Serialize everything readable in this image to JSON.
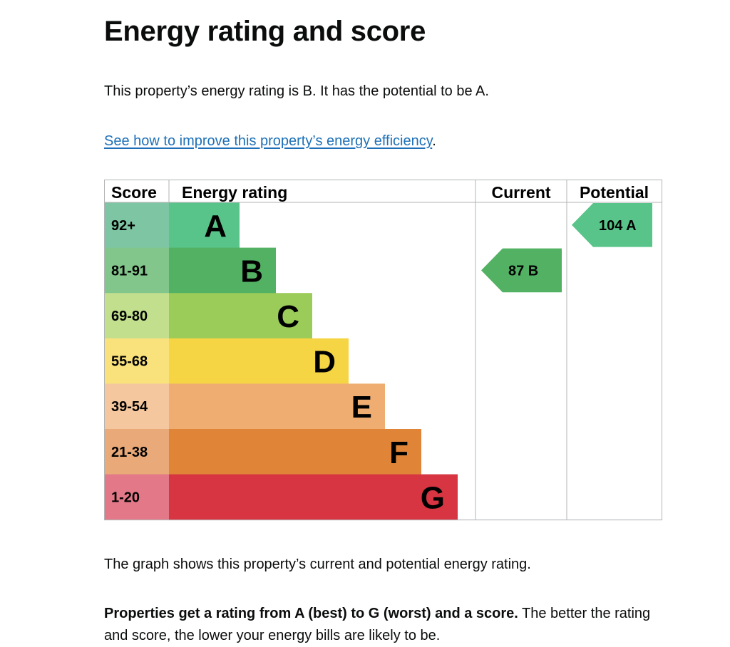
{
  "title": "Energy rating and score",
  "summary": "This property’s energy rating is B. It has the potential to be A.",
  "improve_link": "See how to improve this property’s energy efficiency",
  "improve_suffix": ".",
  "table": {
    "headers": {
      "score": "Score",
      "rating": "Energy rating",
      "current": "Current",
      "potential": "Potential"
    },
    "bands": [
      {
        "score": "92+",
        "letter": "A",
        "color": "#59c489",
        "score_color": "#7dc5a3"
      },
      {
        "score": "81-91",
        "letter": "B",
        "color": "#52b163",
        "score_color": "#82c68b"
      },
      {
        "score": "69-80",
        "letter": "C",
        "color": "#9bcb58",
        "score_color": "#c1df8d"
      },
      {
        "score": "55-68",
        "letter": "D",
        "color": "#f6d544",
        "score_color": "#f9e27c"
      },
      {
        "score": "39-54",
        "letter": "E",
        "color": "#efad72",
        "score_color": "#f5c79e"
      },
      {
        "score": "21-38",
        "letter": "F",
        "color": "#e08438",
        "score_color": "#e9a978"
      },
      {
        "score": "1-20",
        "letter": "G",
        "color": "#d63541",
        "score_color": "#e37988"
      }
    ],
    "current": {
      "value": "87",
      "letter": "B",
      "band_index": 1,
      "color": "#52b163"
    },
    "potential": {
      "value": "104",
      "letter": "A",
      "band_index": 0,
      "color": "#59c489"
    }
  },
  "graph_note": "The graph shows this property’s current and potential energy rating.",
  "rating_bold": "Properties get a rating from A (best) to G (worst) and a score.",
  "rating_rest": " The better the rating and score, the lower your energy bills are likely to be."
}
